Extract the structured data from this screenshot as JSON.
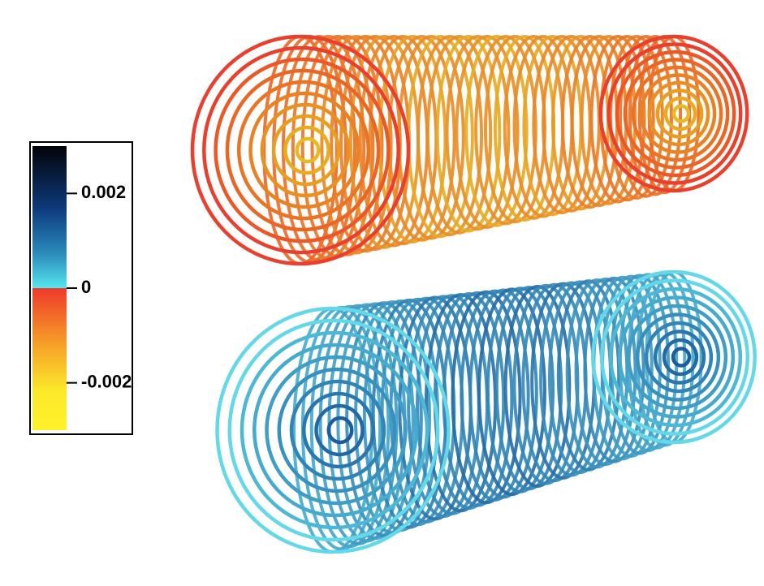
{
  "colorbar": {
    "range": [
      -0.003,
      0.003
    ],
    "ticks": [
      0.002,
      0,
      -0.002
    ]
  }
}
